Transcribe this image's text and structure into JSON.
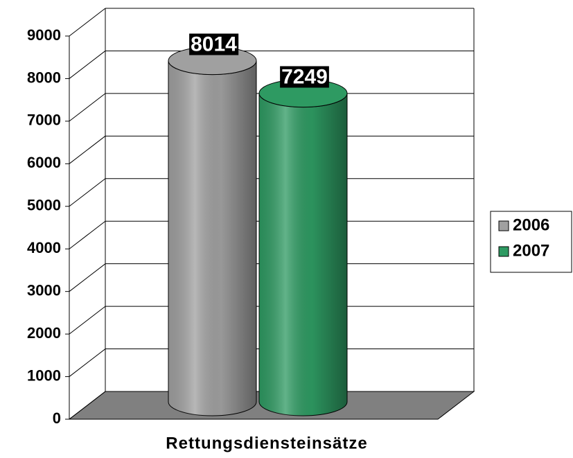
{
  "chart_data": {
    "type": "bar3d",
    "categories": [
      "Rettungsdiensteinsätze"
    ],
    "series": [
      {
        "name": "2006",
        "color": "#a0a0a0",
        "values": [
          8014
        ]
      },
      {
        "name": "2007",
        "color": "#2e9a62",
        "values": [
          7249
        ]
      }
    ],
    "ylim": [
      0,
      9000
    ],
    "yticks": [
      0,
      1000,
      2000,
      3000,
      4000,
      5000,
      6000,
      7000,
      8000,
      9000
    ],
    "grid": true,
    "legend": "right"
  }
}
